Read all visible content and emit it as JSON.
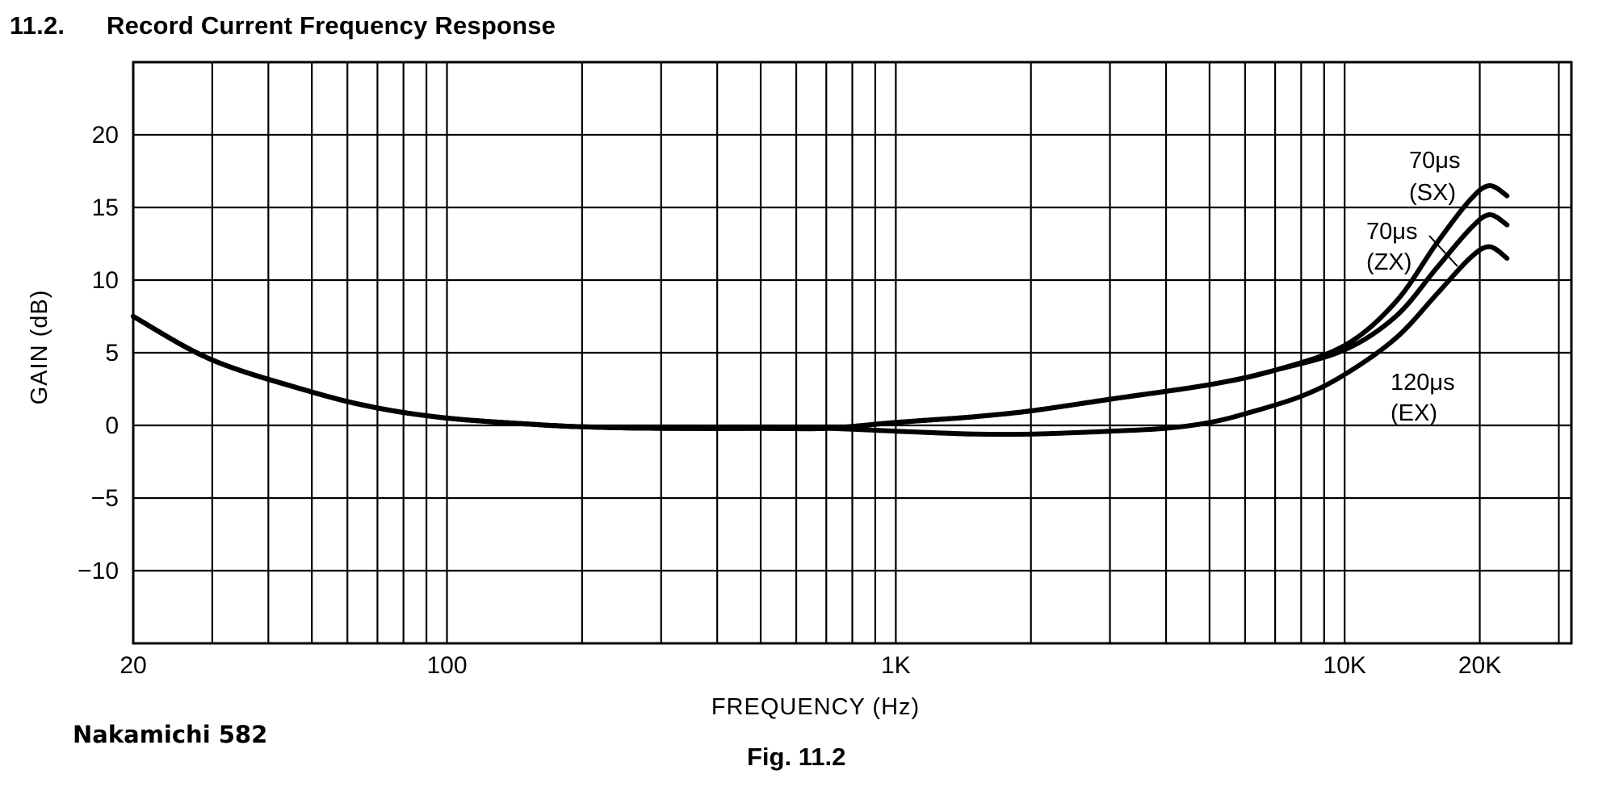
{
  "heading": {
    "number": "11.2.",
    "title": "Record Current Frequency Response"
  },
  "footer": {
    "brand": "Nakamichi 582",
    "figure_caption": "Fig. 11.2"
  },
  "chart_data": {
    "type": "line",
    "title": "",
    "xlabel": "FREQUENCY (Hz)",
    "ylabel": "GAIN (dB)",
    "x_scale": "log",
    "xlim": [
      20,
      32000
    ],
    "ylim": [
      -15,
      25
    ],
    "grid": true,
    "legend": "labels next to curves at right",
    "x_tick_labels": [
      {
        "value": 20,
        "label": "20"
      },
      {
        "value": 100,
        "label": "100"
      },
      {
        "value": 1000,
        "label": "1K"
      },
      {
        "value": 10000,
        "label": "10K"
      },
      {
        "value": 20000,
        "label": "20K"
      }
    ],
    "y_ticks": [
      {
        "value": 20,
        "label": "20"
      },
      {
        "value": 15,
        "label": "15"
      },
      {
        "value": 10,
        "label": "10"
      },
      {
        "value": 5,
        "label": "5"
      },
      {
        "value": 0,
        "label": "0"
      },
      {
        "value": -5,
        "label": "−5"
      },
      {
        "value": -10,
        "label": "−10"
      }
    ],
    "x_gridlines": [
      20,
      30,
      40,
      50,
      60,
      70,
      80,
      90,
      100,
      200,
      300,
      400,
      500,
      600,
      700,
      800,
      900,
      1000,
      2000,
      3000,
      4000,
      5000,
      6000,
      7000,
      8000,
      9000,
      10000,
      20000,
      30000
    ],
    "y_gridlines": [
      -10,
      -5,
      0,
      5,
      10,
      15,
      20
    ],
    "common_curve": {
      "x": [
        20,
        30,
        50,
        70,
        100,
        150,
        200,
        300,
        500,
        700
      ],
      "y": [
        7.5,
        4.5,
        2.3,
        1.2,
        0.5,
        0.1,
        -0.1,
        -0.2,
        -0.2,
        -0.2
      ]
    },
    "series": [
      {
        "name": "70μs (SX)",
        "label_lines": [
          "70μs",
          "(SX)"
        ],
        "x": [
          700,
          1000,
          1500,
          2000,
          3000,
          5000,
          7000,
          10000,
          13000,
          16000,
          19000,
          21000,
          23000
        ],
        "y": [
          -0.2,
          0.2,
          0.6,
          1.0,
          1.8,
          2.8,
          3.8,
          5.5,
          8.5,
          12.5,
          15.5,
          16.5,
          15.8
        ]
      },
      {
        "name": "70μs (ZX)",
        "label_lines": [
          "70μs",
          "(ZX)"
        ],
        "x": [
          700,
          1000,
          1500,
          2000,
          3000,
          5000,
          7000,
          10000,
          13000,
          16000,
          19000,
          21000,
          23000
        ],
        "y": [
          -0.2,
          0.2,
          0.6,
          1.0,
          1.8,
          2.8,
          3.8,
          5.2,
          7.5,
          10.8,
          13.5,
          14.5,
          13.8
        ]
      },
      {
        "name": "120μs (EX)",
        "label_lines": [
          "120μs",
          "(EX)"
        ],
        "x": [
          700,
          1000,
          1500,
          2000,
          3000,
          4000,
          5000,
          6000,
          8000,
          10000,
          13000,
          16000,
          19000,
          21000,
          23000
        ],
        "y": [
          -0.2,
          -0.4,
          -0.6,
          -0.6,
          -0.4,
          -0.2,
          0.2,
          0.8,
          2.0,
          3.5,
          6.0,
          9.0,
          11.5,
          12.3,
          11.5
        ]
      }
    ]
  }
}
